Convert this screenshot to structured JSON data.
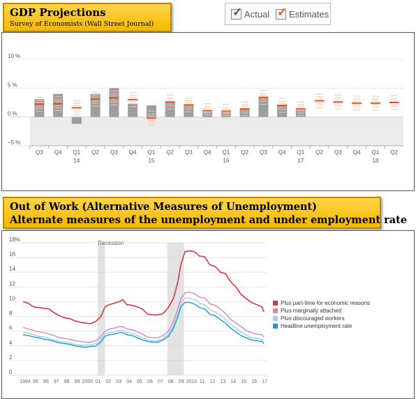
{
  "header_gdp": {
    "title": "GDP Projections",
    "subtitle": "Survey of Economists (Wall Street Journal)"
  },
  "toggle_legend": {
    "actual_label": "Actual",
    "estimates_label": "Estimates",
    "actual_check_color": "#555555",
    "estimates_check_color": "#e8541c"
  },
  "header_unemp": {
    "title": "Out of Work  (Alternative Measures of Unemployment)",
    "subtitle": "Alternate measures of the unemployment and under employment rate"
  },
  "chart_data": [
    {
      "type": "bar",
      "ylim": [
        -5,
        10
      ],
      "yticks": [
        -5,
        0,
        5,
        10
      ],
      "ytick_labels": [
        "−5 %",
        "0 %",
        "5 %",
        "10 %"
      ],
      "categories": [
        "Q3",
        "Q4",
        "Q1",
        "Q2",
        "Q3",
        "Q4",
        "Q1",
        "Q2",
        "Q3",
        "Q4",
        "Q1",
        "Q2",
        "Q3",
        "Q4",
        "Q1",
        "Q2",
        "Q3",
        "Q4",
        "Q1",
        "Q2"
      ],
      "year_labels": [
        {
          "index": 2,
          "label": "14"
        },
        {
          "index": 6,
          "label": "15"
        },
        {
          "index": 10,
          "label": "16"
        },
        {
          "index": 14,
          "label": "17"
        },
        {
          "index": 18,
          "label": "18"
        }
      ],
      "actual": [
        3.1,
        4.0,
        -1.2,
        4.0,
        5.0,
        2.3,
        2.0,
        2.6,
        2.0,
        0.9,
        0.8,
        1.4,
        3.5,
        2.1,
        1.2,
        null,
        null,
        null,
        null,
        null
      ],
      "estimates": [
        2.2,
        2.3,
        1.6,
        3.1,
        3.3,
        3.0,
        -0.2,
        2.6,
        2.1,
        1.1,
        1.0,
        1.4,
        3.4,
        2.0,
        1.4,
        2.8,
        2.6,
        2.4,
        2.4,
        2.5
      ]
    },
    {
      "type": "line",
      "annotation": "Recession",
      "ylim": [
        0,
        18
      ],
      "yticks": [
        0,
        2,
        4,
        6,
        8,
        10,
        12,
        14,
        16,
        18
      ],
      "ytick_labels": [
        "0",
        "2",
        "4",
        "6",
        "8",
        "10",
        "12",
        "14",
        "16",
        "18%"
      ],
      "x_tick_labels": [
        "1994",
        "95",
        "96",
        "97",
        "98",
        "99",
        "2000",
        "01",
        "02",
        "03",
        "04",
        "05",
        "06",
        "07",
        "08",
        "09",
        "2010",
        "11",
        "12",
        "13",
        "14",
        "15",
        "16",
        "17"
      ],
      "xlim": [
        1994,
        2017.4
      ],
      "recessions": [
        [
          2001.2,
          2001.9
        ],
        [
          2007.9,
          2009.5
        ]
      ],
      "series": [
        {
          "name": "Plus part-time for economic reasons",
          "color": "#e0353b",
          "points": [
            [
              1994,
              10.0
            ],
            [
              1994.5,
              9.8
            ],
            [
              1995,
              9.3
            ],
            [
              1995.5,
              9.2
            ],
            [
              1996,
              9.1
            ],
            [
              1996.5,
              9.0
            ],
            [
              1997,
              8.5
            ],
            [
              1997.5,
              8.1
            ],
            [
              1998,
              7.8
            ],
            [
              1998.5,
              7.7
            ],
            [
              1999,
              7.4
            ],
            [
              1999.5,
              7.2
            ],
            [
              2000,
              7.1
            ],
            [
              2000.5,
              7.0
            ],
            [
              2001,
              7.3
            ],
            [
              2001.5,
              8.0
            ],
            [
              2001.9,
              9.3
            ],
            [
              2002.3,
              9.6
            ],
            [
              2002.8,
              9.8
            ],
            [
              2003.3,
              10.0
            ],
            [
              2003.6,
              10.3
            ],
            [
              2004,
              9.6
            ],
            [
              2004.5,
              9.5
            ],
            [
              2005,
              9.3
            ],
            [
              2005.5,
              9.0
            ],
            [
              2006,
              8.3
            ],
            [
              2006.5,
              8.2
            ],
            [
              2007,
              8.2
            ],
            [
              2007.5,
              8.4
            ],
            [
              2008,
              9.2
            ],
            [
              2008.5,
              10.5
            ],
            [
              2008.9,
              12.6
            ],
            [
              2009.2,
              15.0
            ],
            [
              2009.6,
              16.8
            ],
            [
              2010,
              16.9
            ],
            [
              2010.5,
              16.8
            ],
            [
              2011,
              16.2
            ],
            [
              2011.5,
              16.1
            ],
            [
              2012,
              15.0
            ],
            [
              2012.5,
              14.8
            ],
            [
              2013,
              14.0
            ],
            [
              2013.5,
              13.8
            ],
            [
              2014,
              12.7
            ],
            [
              2014.5,
              12.0
            ],
            [
              2015,
              11.0
            ],
            [
              2015.5,
              10.4
            ],
            [
              2016,
              9.9
            ],
            [
              2016.5,
              9.6
            ],
            [
              2017,
              9.3
            ],
            [
              2017.2,
              8.6
            ]
          ]
        },
        {
          "name": "Plus marginally attached",
          "color": "#d789b6",
          "points": [
            [
              1994,
              6.5
            ],
            [
              1994.5,
              6.3
            ],
            [
              1995,
              6.1
            ],
            [
              1995.5,
              5.9
            ],
            [
              1996,
              5.8
            ],
            [
              1996.5,
              5.6
            ],
            [
              1997,
              5.4
            ],
            [
              1997.5,
              5.1
            ],
            [
              1998,
              5.0
            ],
            [
              1998.5,
              4.9
            ],
            [
              1999,
              4.7
            ],
            [
              1999.5,
              4.6
            ],
            [
              2000,
              4.5
            ],
            [
              2000.5,
              4.5
            ],
            [
              2001,
              4.7
            ],
            [
              2001.5,
              5.2
            ],
            [
              2001.9,
              6.0
            ],
            [
              2002.3,
              6.3
            ],
            [
              2002.8,
              6.4
            ],
            [
              2003.3,
              6.6
            ],
            [
              2003.6,
              6.6
            ],
            [
              2004,
              6.3
            ],
            [
              2004.5,
              6.2
            ],
            [
              2005,
              5.9
            ],
            [
              2005.5,
              5.6
            ],
            [
              2006,
              5.2
            ],
            [
              2006.5,
              5.1
            ],
            [
              2007,
              5.1
            ],
            [
              2007.5,
              5.4
            ],
            [
              2008,
              6.0
            ],
            [
              2008.5,
              7.3
            ],
            [
              2008.9,
              9.0
            ],
            [
              2009.2,
              10.4
            ],
            [
              2009.6,
              11.2
            ],
            [
              2010,
              11.3
            ],
            [
              2010.5,
              11.1
            ],
            [
              2011,
              10.6
            ],
            [
              2011.5,
              10.5
            ],
            [
              2012,
              9.7
            ],
            [
              2012.5,
              9.5
            ],
            [
              2013,
              9.0
            ],
            [
              2013.5,
              8.4
            ],
            [
              2014,
              7.6
            ],
            [
              2014.5,
              7.1
            ],
            [
              2015,
              6.6
            ],
            [
              2015.5,
              6.1
            ],
            [
              2016,
              5.8
            ],
            [
              2016.5,
              5.6
            ],
            [
              2017,
              5.5
            ],
            [
              2017.2,
              5.2
            ]
          ]
        },
        {
          "name": "Plus discouraged workers",
          "color": "#9fd0ea",
          "points": [
            [
              1994,
              5.9
            ],
            [
              1994.5,
              5.7
            ],
            [
              1995,
              5.5
            ],
            [
              1995.5,
              5.3
            ],
            [
              1996,
              5.2
            ],
            [
              1996.5,
              5.0
            ],
            [
              1997,
              4.8
            ],
            [
              1997.5,
              4.6
            ],
            [
              1998,
              4.5
            ],
            [
              1998.5,
              4.4
            ],
            [
              1999,
              4.2
            ],
            [
              1999.5,
              4.1
            ],
            [
              2000,
              4.1
            ],
            [
              2000.5,
              4.1
            ],
            [
              2001,
              4.3
            ],
            [
              2001.5,
              4.8
            ],
            [
              2001.9,
              5.6
            ],
            [
              2002.3,
              5.8
            ],
            [
              2002.8,
              5.9
            ],
            [
              2003.3,
              6.1
            ],
            [
              2003.6,
              6.1
            ],
            [
              2004,
              5.8
            ],
            [
              2004.5,
              5.7
            ],
            [
              2005,
              5.4
            ],
            [
              2005.5,
              5.1
            ],
            [
              2006,
              4.8
            ],
            [
              2006.5,
              4.7
            ],
            [
              2007,
              4.7
            ],
            [
              2007.5,
              5.0
            ],
            [
              2008,
              5.6
            ],
            [
              2008.5,
              6.8
            ],
            [
              2008.9,
              8.4
            ],
            [
              2009.2,
              9.8
            ],
            [
              2009.6,
              10.5
            ],
            [
              2010,
              10.5
            ],
            [
              2010.5,
              10.3
            ],
            [
              2011,
              9.8
            ],
            [
              2011.5,
              9.6
            ],
            [
              2012,
              8.9
            ],
            [
              2012.5,
              8.6
            ],
            [
              2013,
              8.2
            ],
            [
              2013.5,
              7.6
            ],
            [
              2014,
              6.9
            ],
            [
              2014.5,
              6.4
            ],
            [
              2015,
              5.9
            ],
            [
              2015.5,
              5.5
            ],
            [
              2016,
              5.1
            ],
            [
              2016.5,
              5.0
            ],
            [
              2017,
              4.9
            ],
            [
              2017.2,
              4.6
            ]
          ]
        },
        {
          "name": "Headline unemployment rate",
          "color": "#1a9ad6",
          "points": [
            [
              1994,
              5.5
            ],
            [
              1994.5,
              5.4
            ],
            [
              1995,
              5.2
            ],
            [
              1995.5,
              5.1
            ],
            [
              1996,
              4.9
            ],
            [
              1996.5,
              4.8
            ],
            [
              1997,
              4.6
            ],
            [
              1997.5,
              4.4
            ],
            [
              1998,
              4.3
            ],
            [
              1998.5,
              4.2
            ],
            [
              1999,
              4.0
            ],
            [
              1999.5,
              3.9
            ],
            [
              2000,
              3.8
            ],
            [
              2000.5,
              3.9
            ],
            [
              2001,
              4.0
            ],
            [
              2001.5,
              4.5
            ],
            [
              2001.9,
              5.3
            ],
            [
              2002.3,
              5.5
            ],
            [
              2002.8,
              5.6
            ],
            [
              2003.3,
              5.8
            ],
            [
              2003.6,
              5.8
            ],
            [
              2004,
              5.5
            ],
            [
              2004.5,
              5.4
            ],
            [
              2005,
              5.1
            ],
            [
              2005.5,
              4.8
            ],
            [
              2006,
              4.6
            ],
            [
              2006.5,
              4.5
            ],
            [
              2007,
              4.5
            ],
            [
              2007.5,
              4.8
            ],
            [
              2008,
              5.3
            ],
            [
              2008.5,
              6.4
            ],
            [
              2008.9,
              7.9
            ],
            [
              2009.2,
              9.3
            ],
            [
              2009.6,
              9.9
            ],
            [
              2010,
              9.9
            ],
            [
              2010.5,
              9.7
            ],
            [
              2011,
              9.2
            ],
            [
              2011.5,
              9.0
            ],
            [
              2012,
              8.3
            ],
            [
              2012.5,
              8.1
            ],
            [
              2013,
              7.6
            ],
            [
              2013.5,
              7.1
            ],
            [
              2014,
              6.4
            ],
            [
              2014.5,
              5.9
            ],
            [
              2015,
              5.4
            ],
            [
              2015.5,
              5.1
            ],
            [
              2016,
              4.8
            ],
            [
              2016.5,
              4.7
            ],
            [
              2017,
              4.6
            ],
            [
              2017.2,
              4.3
            ]
          ]
        }
      ]
    }
  ]
}
